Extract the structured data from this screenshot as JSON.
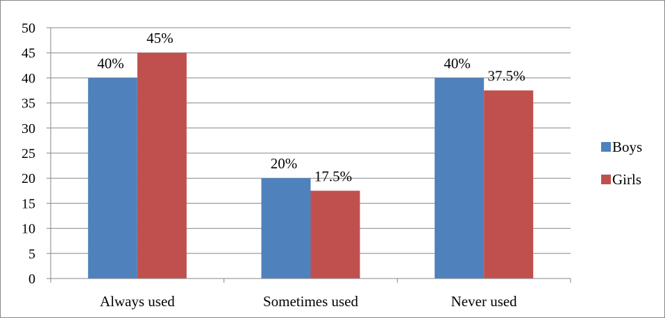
{
  "chart_data": {
    "type": "bar",
    "categories": [
      "Always used",
      "Sometimes used",
      "Never used"
    ],
    "series": [
      {
        "name": "Boys",
        "values": [
          40,
          20,
          40
        ],
        "data_labels": [
          "40%",
          "20%",
          "40%"
        ],
        "color": "#4F81BD"
      },
      {
        "name": "Girls",
        "values": [
          45,
          17.5,
          37.5
        ],
        "data_labels": [
          "45%",
          "17.5%",
          "37.5%"
        ],
        "color": "#C0504D"
      }
    ],
    "y_ticks": [
      "0",
      "5",
      "10",
      "15",
      "20",
      "25",
      "30",
      "35",
      "40",
      "45",
      "50"
    ],
    "ylim": [
      0,
      50
    ],
    "grid": true,
    "legend_position": "right",
    "title": "",
    "xlabel": "",
    "ylabel": ""
  }
}
